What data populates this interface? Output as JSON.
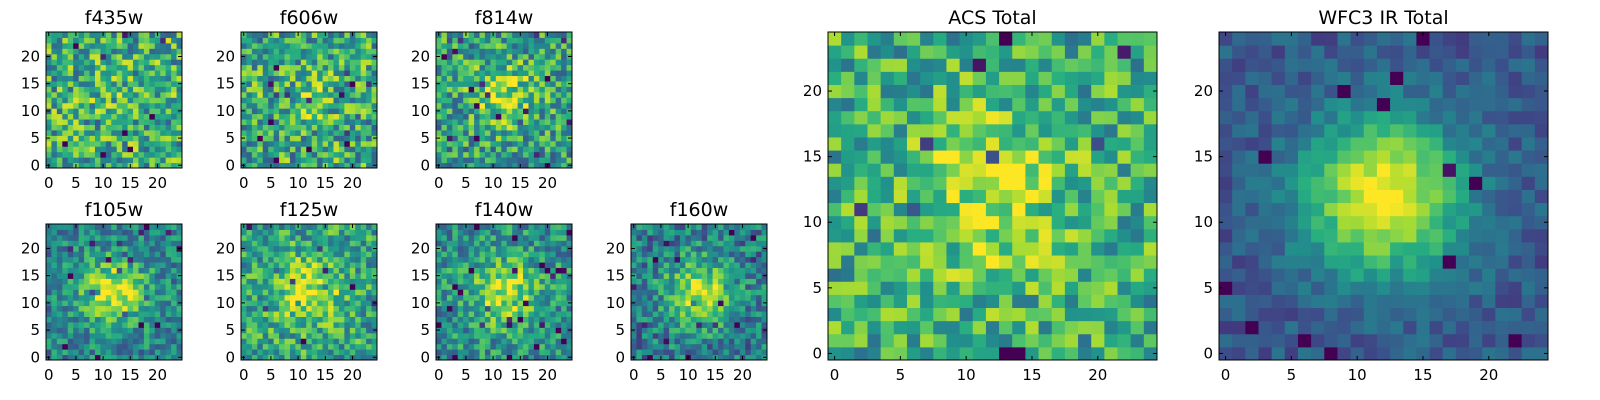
{
  "chart_data": [
    {
      "id": "f435w",
      "type": "heatmap",
      "title": "f435w",
      "grid_size": 25,
      "xlim": [
        0,
        24
      ],
      "ylim": [
        0,
        24
      ],
      "xticks": [
        0,
        5,
        10,
        15,
        20
      ],
      "yticks": [
        0,
        5,
        10,
        15,
        20
      ],
      "colormap": "viridis",
      "peak": [
        12,
        12
      ],
      "peak_strength": 0.05,
      "noise": 0.32,
      "base": 0.62,
      "seed": 11
    },
    {
      "id": "f606w",
      "type": "heatmap",
      "title": "f606w",
      "grid_size": 25,
      "xlim": [
        0,
        24
      ],
      "ylim": [
        0,
        24
      ],
      "xticks": [
        0,
        5,
        10,
        15,
        20
      ],
      "yticks": [
        0,
        5,
        10,
        15,
        20
      ],
      "colormap": "viridis",
      "peak": [
        12,
        12
      ],
      "peak_strength": 0.12,
      "noise": 0.32,
      "base": 0.6,
      "seed": 23
    },
    {
      "id": "f814w",
      "type": "heatmap",
      "title": "f814w",
      "grid_size": 25,
      "xlim": [
        0,
        24
      ],
      "ylim": [
        0,
        24
      ],
      "xticks": [
        0,
        5,
        10,
        15,
        20
      ],
      "yticks": [
        0,
        5,
        10,
        15,
        20
      ],
      "colormap": "viridis",
      "peak": [
        12,
        13
      ],
      "peak_strength": 0.32,
      "noise": 0.3,
      "base": 0.55,
      "seed": 37
    },
    {
      "id": "f105w",
      "type": "heatmap",
      "title": "f105w",
      "grid_size": 25,
      "xlim": [
        0,
        24
      ],
      "ylim": [
        0,
        24
      ],
      "xticks": [
        0,
        5,
        10,
        15,
        20
      ],
      "yticks": [
        0,
        5,
        10,
        15,
        20
      ],
      "colormap": "viridis",
      "peak": [
        12,
        12
      ],
      "peak_strength": 0.5,
      "noise": 0.22,
      "base": 0.45,
      "seed": 41
    },
    {
      "id": "f125w",
      "type": "heatmap",
      "title": "f125w",
      "grid_size": 25,
      "xlim": [
        0,
        24
      ],
      "ylim": [
        0,
        24
      ],
      "xticks": [
        0,
        5,
        10,
        15,
        20
      ],
      "yticks": [
        0,
        5,
        10,
        15,
        20
      ],
      "colormap": "viridis",
      "peak": [
        12,
        12
      ],
      "peak_strength": 0.35,
      "noise": 0.26,
      "base": 0.58,
      "seed": 53
    },
    {
      "id": "f140w",
      "type": "heatmap",
      "title": "f140w",
      "grid_size": 25,
      "xlim": [
        0,
        24
      ],
      "ylim": [
        0,
        24
      ],
      "xticks": [
        0,
        5,
        10,
        15,
        20
      ],
      "yticks": [
        0,
        5,
        10,
        15,
        20
      ],
      "colormap": "viridis",
      "peak": [
        12,
        12
      ],
      "peak_strength": 0.42,
      "noise": 0.24,
      "base": 0.5,
      "seed": 67
    },
    {
      "id": "f160w",
      "type": "heatmap",
      "title": "f160w",
      "grid_size": 25,
      "xlim": [
        0,
        24
      ],
      "ylim": [
        0,
        24
      ],
      "xticks": [
        0,
        5,
        10,
        15,
        20
      ],
      "yticks": [
        0,
        5,
        10,
        15,
        20
      ],
      "colormap": "viridis",
      "peak": [
        12,
        12
      ],
      "peak_strength": 0.5,
      "noise": 0.24,
      "base": 0.42,
      "seed": 79
    },
    {
      "id": "acs-total",
      "type": "heatmap",
      "title": "ACS Total",
      "grid_size": 25,
      "xlim": [
        0,
        24
      ],
      "ylim": [
        0,
        24
      ],
      "xticks": [
        0,
        5,
        10,
        15,
        20
      ],
      "yticks": [
        0,
        5,
        10,
        15,
        20
      ],
      "colormap": "viridis",
      "peak": [
        12,
        12
      ],
      "peak_strength": 0.3,
      "noise": 0.26,
      "base": 0.62,
      "seed": 97
    },
    {
      "id": "wfc3-ir-total",
      "type": "heatmap",
      "title": "WFC3 IR Total",
      "grid_size": 25,
      "xlim": [
        0,
        24
      ],
      "ylim": [
        0,
        24
      ],
      "xticks": [
        0,
        5,
        10,
        15,
        20
      ],
      "yticks": [
        0,
        5,
        10,
        15,
        20
      ],
      "colormap": "viridis",
      "peak": [
        12,
        12
      ],
      "peak_strength": 0.75,
      "noise": 0.1,
      "base": 0.28,
      "seed": 113
    }
  ]
}
